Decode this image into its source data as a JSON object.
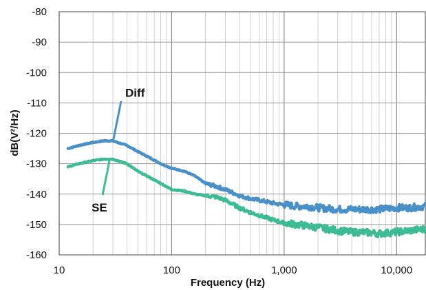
{
  "chart_data": {
    "type": "line",
    "title": "",
    "xlabel": "Frequency (Hz)",
    "ylabel": "dB(V²/Hz)",
    "x_scale": "log",
    "xlim": [
      10,
      18000
    ],
    "ylim": [
      -160,
      -80
    ],
    "grid": true,
    "x_ticks": [
      {
        "value": 10,
        "label": "10"
      },
      {
        "value": 100,
        "label": "100"
      },
      {
        "value": 1000,
        "label": "1,000"
      },
      {
        "value": 10000,
        "label": "10,000"
      }
    ],
    "y_ticks": [
      {
        "value": -80,
        "label": "-80"
      },
      {
        "value": -90,
        "label": "-90"
      },
      {
        "value": -100,
        "label": "-100"
      },
      {
        "value": -110,
        "label": "-110"
      },
      {
        "value": -120,
        "label": "-120"
      },
      {
        "value": -130,
        "label": "-130"
      },
      {
        "value": -140,
        "label": "-140"
      },
      {
        "value": -150,
        "label": "-150"
      },
      {
        "value": -160,
        "label": "-160"
      }
    ],
    "series": [
      {
        "name": "Diff",
        "color": "#4a90c8",
        "x": [
          12,
          15,
          20,
          25,
          30,
          40,
          50,
          60,
          80,
          100,
          130,
          160,
          200,
          250,
          300,
          400,
          500,
          600,
          800,
          1000,
          1300,
          1600,
          2000,
          3000,
          4000,
          5000,
          7000,
          10000,
          13000,
          18000
        ],
        "y": [
          -125,
          -124,
          -123,
          -122.5,
          -122.5,
          -124,
          -126,
          -127.5,
          -130,
          -131.5,
          -132.5,
          -134,
          -136.5,
          -137.5,
          -138.5,
          -140.5,
          -141.5,
          -142,
          -143,
          -143.5,
          -144,
          -144,
          -144.5,
          -145,
          -145,
          -145,
          -145,
          -144.5,
          -144.5,
          -144
        ]
      },
      {
        "name": "SE",
        "color": "#3dbb94",
        "x": [
          12,
          15,
          20,
          25,
          30,
          40,
          50,
          60,
          80,
          100,
          130,
          160,
          200,
          250,
          300,
          400,
          500,
          600,
          800,
          1000,
          1300,
          1600,
          2000,
          3000,
          4000,
          5000,
          7000,
          10000,
          13000,
          18000
        ],
        "y": [
          -131,
          -130,
          -129,
          -128.5,
          -128.5,
          -130,
          -132.5,
          -134,
          -136.5,
          -138.5,
          -139,
          -140,
          -140.5,
          -141,
          -142,
          -144.5,
          -146,
          -147,
          -148.5,
          -149.5,
          -150,
          -150.5,
          -151,
          -152,
          -152.5,
          -152.5,
          -153,
          -152.5,
          -152,
          -151.5
        ]
      }
    ],
    "annotations": [
      {
        "text": "Diff",
        "series": "Diff",
        "x": 30,
        "y": -123
      },
      {
        "text": "SE",
        "series": "SE",
        "x": 28,
        "y": -129
      }
    ]
  }
}
